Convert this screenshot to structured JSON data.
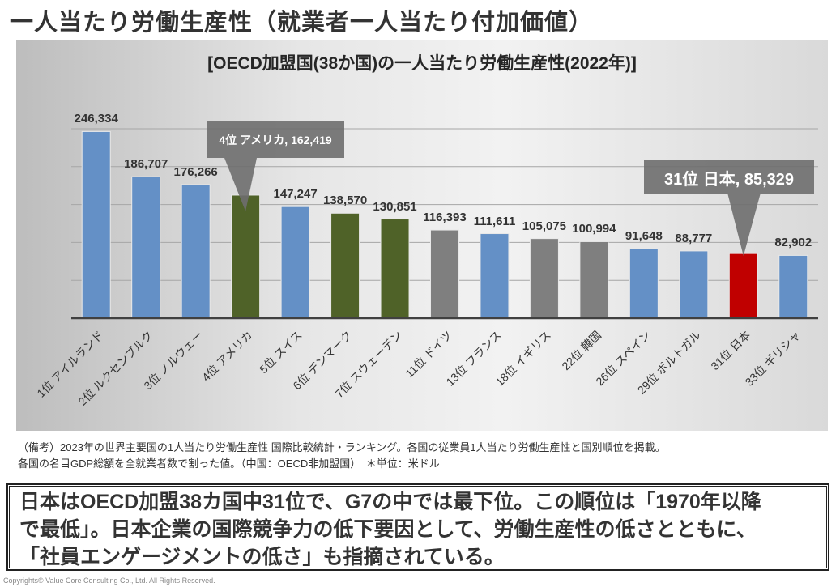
{
  "page_title": "一人当たり労働生産性（就業者一人当たり付加価値）",
  "chart_data": {
    "type": "bar",
    "title": "[OECD加盟国(38か国)の一人当たり労働生産性(2022年)]",
    "xlabel": "",
    "ylabel": "",
    "ylim": [
      0,
      250000
    ],
    "grid": true,
    "gridlines": [
      50000,
      100000,
      150000,
      200000,
      250000
    ],
    "categories": [
      "1位 アイルランド",
      "2位 ルクセンブルク",
      "3位 ノルウェー",
      "4位 アメリカ",
      "5位 スイス",
      "6位 デンマーク",
      "7位 スウェーデン",
      "11位 ドイツ",
      "13位 フランス",
      "18位 イギリス",
      "22位 韓国",
      "26位 スペイン",
      "29位 ポルトガル",
      "31位 日本",
      "33位 ギリシャ"
    ],
    "values": [
      246334,
      186707,
      176266,
      162419,
      147247,
      138570,
      130851,
      116393,
      111611,
      105075,
      100994,
      91648,
      88777,
      85329,
      82902
    ],
    "value_labels": [
      "246,334",
      "186,707",
      "176,266",
      "",
      "147,247",
      "138,570",
      "130,851",
      "116,393",
      "111,611",
      "105,075",
      "100,994",
      "91,648",
      "88,777",
      "",
      "82,902"
    ],
    "bar_colors": [
      "#6490c6",
      "#6490c6",
      "#6490c6",
      "#4f6228",
      "#6490c6",
      "#4f6228",
      "#4f6228",
      "#7f7f7f",
      "#6490c6",
      "#7f7f7f",
      "#7f7f7f",
      "#6490c6",
      "#6490c6",
      "#c00000",
      "#6490c6"
    ],
    "annotations": [
      {
        "index": 3,
        "text": "4位 アメリカ, 162,419"
      },
      {
        "index": 13,
        "text": "31位 日本, 85,329"
      }
    ]
  },
  "notes": [
    "（備考）2023年の世界主要国の1人当たり労働生産性 国際比較統計・ランキング。各国の従業員1人当たり労働生産性と国別順位を掲載。",
    "各国の名目GDP総額を全就業者数で割った値。（中国：OECD非加盟国）　＊単位：米ドル"
  ],
  "summary_lines": [
    "日本はOECD加盟38カ国中31位で、G7の中では最下位。この順位は「1970年以降",
    "で最低」。日本企業の国際競争力の低下要因として、労働生産性の低さとともに、",
    "「社員エンゲージメントの低さ」も指摘されている。"
  ],
  "copyright": "Copyrights© Value Core Consulting Co., Ltd.  All Rights Reserved."
}
